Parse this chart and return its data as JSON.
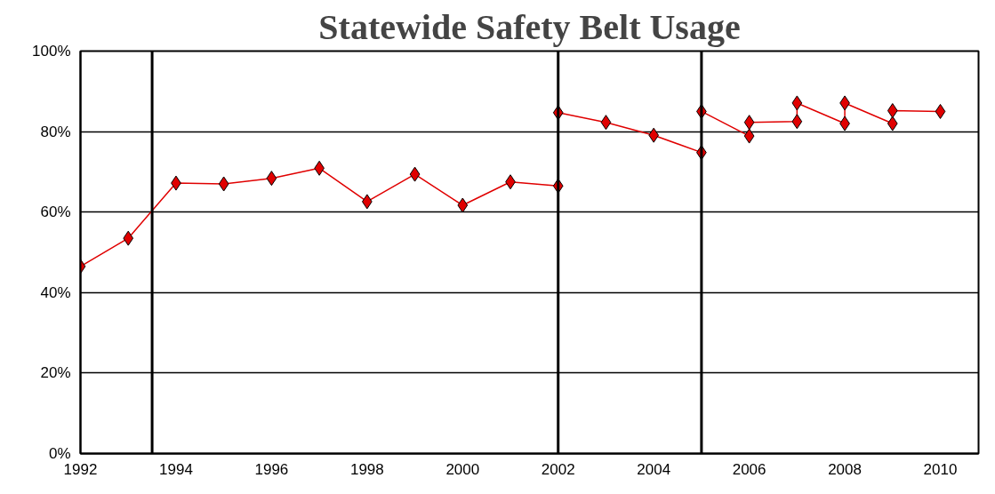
{
  "chart_data": {
    "type": "line",
    "title": "Statewide Safety Belt Usage",
    "x": [
      1992,
      1993,
      1994,
      1995,
      1996,
      1997,
      1998,
      1999,
      2000,
      2001,
      2002,
      2002,
      2003,
      2004,
      2005,
      2005,
      2006,
      2006,
      2007,
      2007,
      2008,
      2008,
      2009,
      2009,
      2010
    ],
    "series": [
      {
        "color": "#e00000",
        "values": [
          46.5,
          53.5,
          67.2,
          67,
          68.4,
          70.9,
          62.6,
          69.4,
          61.7,
          67.5,
          66.5,
          84.7,
          82.3,
          79.1,
          74.8,
          85,
          78.9,
          82.3,
          82.5,
          87.1,
          82,
          87.1,
          82,
          85.2,
          85
        ]
      }
    ],
    "xlim": [
      1992,
      2010.8
    ],
    "xticks": [
      1992,
      1994,
      1996,
      1998,
      2000,
      2002,
      2004,
      2006,
      2008,
      2010
    ],
    "ylim": [
      0,
      100
    ],
    "yticks": [
      {
        "value": 0,
        "label": "0%"
      },
      {
        "value": 20,
        "label": "20%"
      },
      {
        "value": 40,
        "label": "40%"
      },
      {
        "value": 60,
        "label": "60%"
      },
      {
        "value": 80,
        "label": "80%"
      },
      {
        "value": 100,
        "label": "100%"
      }
    ],
    "grid": "y",
    "marker": "diamond",
    "line_style": "solid",
    "ref_lines": [
      {
        "axis": "x",
        "value": 1993.5,
        "color": "#000000"
      },
      {
        "axis": "x",
        "value": 2002,
        "color": "#000000"
      },
      {
        "axis": "x",
        "value": 2005,
        "color": "#000000"
      }
    ]
  }
}
